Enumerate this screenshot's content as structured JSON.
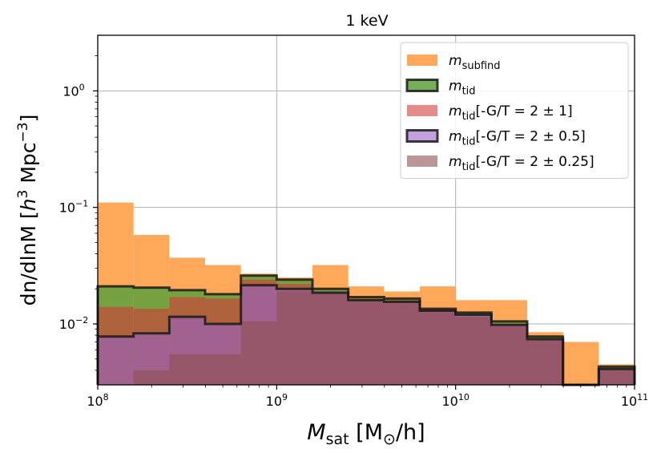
{
  "chart_data": {
    "type": "bar",
    "title": "1 keV",
    "xlabel": {
      "base": "M",
      "sub": "sat",
      "unit_open": " [M",
      "unit_sub": "⊙",
      "unit_close": "/h]"
    },
    "ylabel": {
      "pre": "dn/dlnM [",
      "h": "h",
      "exp1": "3",
      "mid": " Mpc",
      "exp2": "−3",
      "post": "]"
    },
    "xscale": "log",
    "yscale": "log",
    "xlim": [
      100000000.0,
      100000000000.0
    ],
    "ylim": [
      0.003,
      3.0
    ],
    "grid": true,
    "legend_position": "top-right",
    "x_ticks": [
      {
        "value": 100000000.0,
        "base": "10",
        "exp": "8"
      },
      {
        "value": 1000000000.0,
        "base": "10",
        "exp": "9"
      },
      {
        "value": 10000000000.0,
        "base": "10",
        "exp": "10"
      },
      {
        "value": 100000000000.0,
        "base": "10",
        "exp": "11"
      }
    ],
    "y_ticks": [
      {
        "value": 0.01,
        "base": "10",
        "exp": "−2"
      },
      {
        "value": 0.1,
        "base": "10",
        "exp": "−1"
      },
      {
        "value": 1,
        "base": "10",
        "exp": "0"
      }
    ],
    "bin_edges": [
      100000000.0,
      158500000.0,
      251200000.0,
      398100000.0,
      631000000.0,
      1000000000.0,
      1585000000.0,
      2512000000.0,
      3981000000.0,
      6310000000.0,
      10000000000.0,
      15850000000.0,
      25120000000.0,
      39810000000.0,
      63100000000.0,
      100000000000.0
    ],
    "series": [
      {
        "name_base": "m",
        "name_sub": "subfind",
        "name_suffix": "",
        "color": "#ffa85a",
        "alpha": 1.0,
        "outline": false,
        "values": [
          0.11,
          0.058,
          0.037,
          0.032,
          0.027,
          0.025,
          0.032,
          0.021,
          0.019,
          0.021,
          0.016,
          0.016,
          0.0085,
          0.007,
          0.0045
        ]
      },
      {
        "name_base": "m",
        "name_sub": "tid",
        "name_suffix": "",
        "color": "#5ea03c",
        "alpha": 0.85,
        "outline": true,
        "values": [
          0.021,
          0.0205,
          0.0195,
          0.018,
          0.026,
          0.024,
          0.02,
          0.017,
          0.0165,
          0.0135,
          0.0125,
          0.0105,
          0.0078,
          0.0025,
          0.0043
        ]
      },
      {
        "name_base": "m",
        "name_sub": "tid",
        "name_suffix": "[-G/T = 2 ± 1]",
        "color": "#d63a3a",
        "alpha": 0.6,
        "outline": false,
        "values": [
          0.014,
          0.0135,
          0.017,
          0.0165,
          0.024,
          0.022,
          0.019,
          0.0165,
          0.016,
          0.0135,
          0.012,
          0.01,
          0.0074,
          0.0025,
          0.0041
        ]
      },
      {
        "name_base": "m",
        "name_sub": "tid",
        "name_suffix": "[-G/T = 2 ± 0.5]",
        "color": "#9a62c8",
        "alpha": 0.6,
        "outline": true,
        "values": [
          0.0078,
          0.0083,
          0.0115,
          0.01,
          0.0215,
          0.02,
          0.0185,
          0.016,
          0.0155,
          0.013,
          0.012,
          0.0098,
          0.0074,
          0.0025,
          0.0041
        ]
      },
      {
        "name_base": "m",
        "name_sub": "tid",
        "name_suffix": "[-G/T = 2 ± 0.25]",
        "color": "#8c5050",
        "alpha": 0.6,
        "outline": false,
        "values": [
          0.0028,
          0.004,
          0.0055,
          0.0055,
          0.0105,
          0.019,
          0.018,
          0.016,
          0.0155,
          0.013,
          0.0115,
          0.0095,
          0.0074,
          0.0025,
          0.0041
        ]
      }
    ]
  }
}
